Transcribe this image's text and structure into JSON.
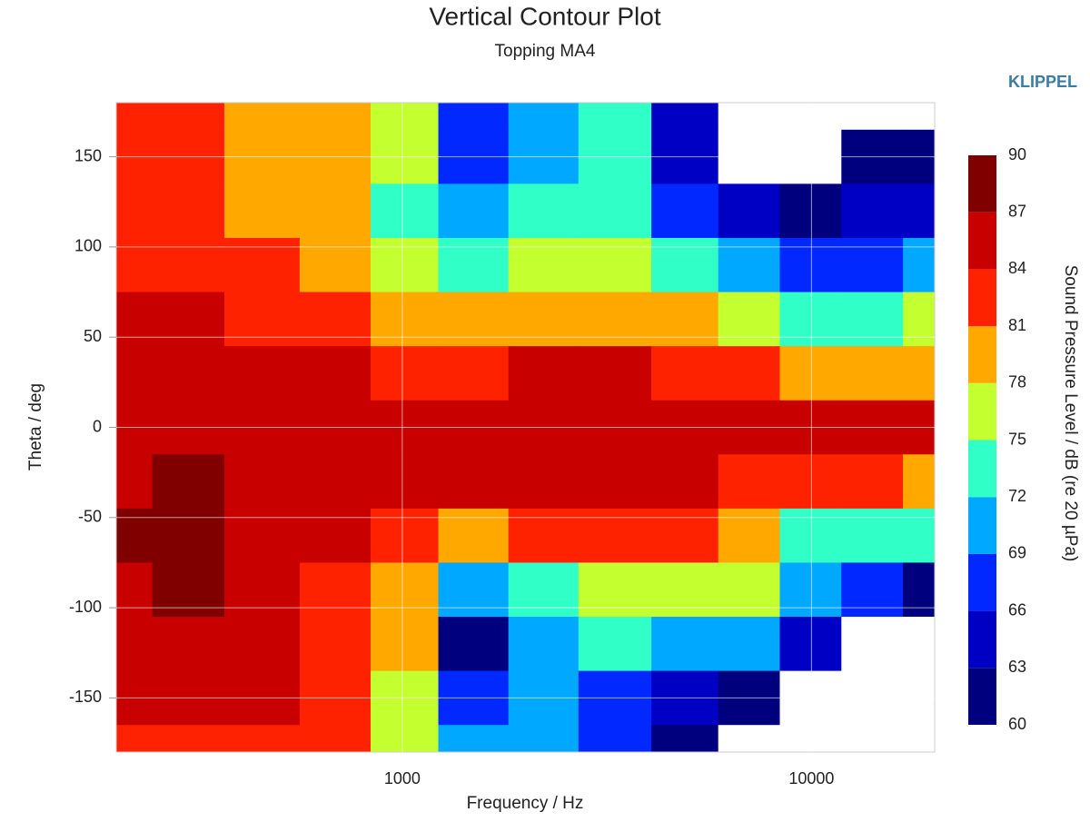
{
  "chart_data": {
    "type": "contour",
    "title": "Vertical Contour Plot",
    "subtitle": "Topping MA4",
    "brand": "KLIPPEL",
    "x_label": "Frequency / Hz",
    "y_label": "Theta / deg",
    "x_scale": "log",
    "xlim": [
      200,
      20000
    ],
    "xticks": [
      1000,
      10000
    ],
    "ylim": [
      -180,
      180
    ],
    "yticks": [
      -150,
      -100,
      -50,
      0,
      50,
      100,
      150
    ],
    "grid": true,
    "x": [
      200,
      300,
      450,
      700,
      1000,
      1500,
      2200,
      3300,
      5000,
      7000,
      10000,
      14000,
      20000
    ],
    "y": [
      180,
      150,
      120,
      90,
      60,
      30,
      0,
      -30,
      -60,
      -90,
      -120,
      -150,
      -180
    ],
    "z": [
      [
        82,
        82,
        79,
        79,
        76,
        68,
        71,
        72,
        64,
        55,
        55,
        55,
        55
      ],
      [
        82,
        82,
        80,
        79,
        75,
        67,
        70,
        73,
        65,
        58,
        55,
        60,
        62
      ],
      [
        82,
        82,
        80,
        78,
        74,
        69,
        72,
        74,
        68,
        65,
        62,
        63,
        64
      ],
      [
        83,
        83,
        81,
        79,
        76,
        74,
        77,
        77,
        74,
        71,
        67,
        68,
        70
      ],
      [
        84,
        84,
        83,
        81,
        79,
        78,
        80,
        80,
        78,
        76,
        72,
        74,
        76
      ],
      [
        85,
        86,
        85,
        84,
        83,
        83,
        84,
        84,
        83,
        82,
        80,
        79,
        80
      ],
      [
        86,
        86,
        86,
        85,
        85,
        85,
        85,
        86,
        86,
        85,
        85,
        85,
        85
      ],
      [
        86,
        87,
        86,
        85,
        85,
        84,
        84,
        85,
        84,
        83,
        82,
        82,
        80
      ],
      [
        87,
        88,
        86,
        84,
        82,
        79,
        81,
        83,
        81,
        78,
        74,
        74,
        72
      ],
      [
        86,
        87,
        86,
        83,
        80,
        70,
        74,
        77,
        77,
        75,
        70,
        66,
        62
      ],
      [
        86,
        86,
        85,
        82,
        78,
        62,
        70,
        72,
        71,
        70,
        65,
        55,
        55
      ],
      [
        84,
        85,
        84,
        82,
        76,
        68,
        70,
        68,
        64,
        62,
        55,
        55,
        55
      ],
      [
        83,
        83,
        82,
        81,
        75,
        70,
        69,
        66,
        60,
        55,
        55,
        55,
        55
      ]
    ],
    "colorbar": {
      "label": "Sound Pressure Level / dB (re 20 µPa)",
      "levels": [
        60,
        63,
        66,
        69,
        72,
        75,
        78,
        81,
        84,
        87,
        90
      ],
      "colors": [
        "#00007f",
        "#0000c4",
        "#0028ff",
        "#00a8ff",
        "#30ffc8",
        "#c4ff30",
        "#ffa800",
        "#ff2200",
        "#c80000",
        "#800000"
      ]
    }
  }
}
